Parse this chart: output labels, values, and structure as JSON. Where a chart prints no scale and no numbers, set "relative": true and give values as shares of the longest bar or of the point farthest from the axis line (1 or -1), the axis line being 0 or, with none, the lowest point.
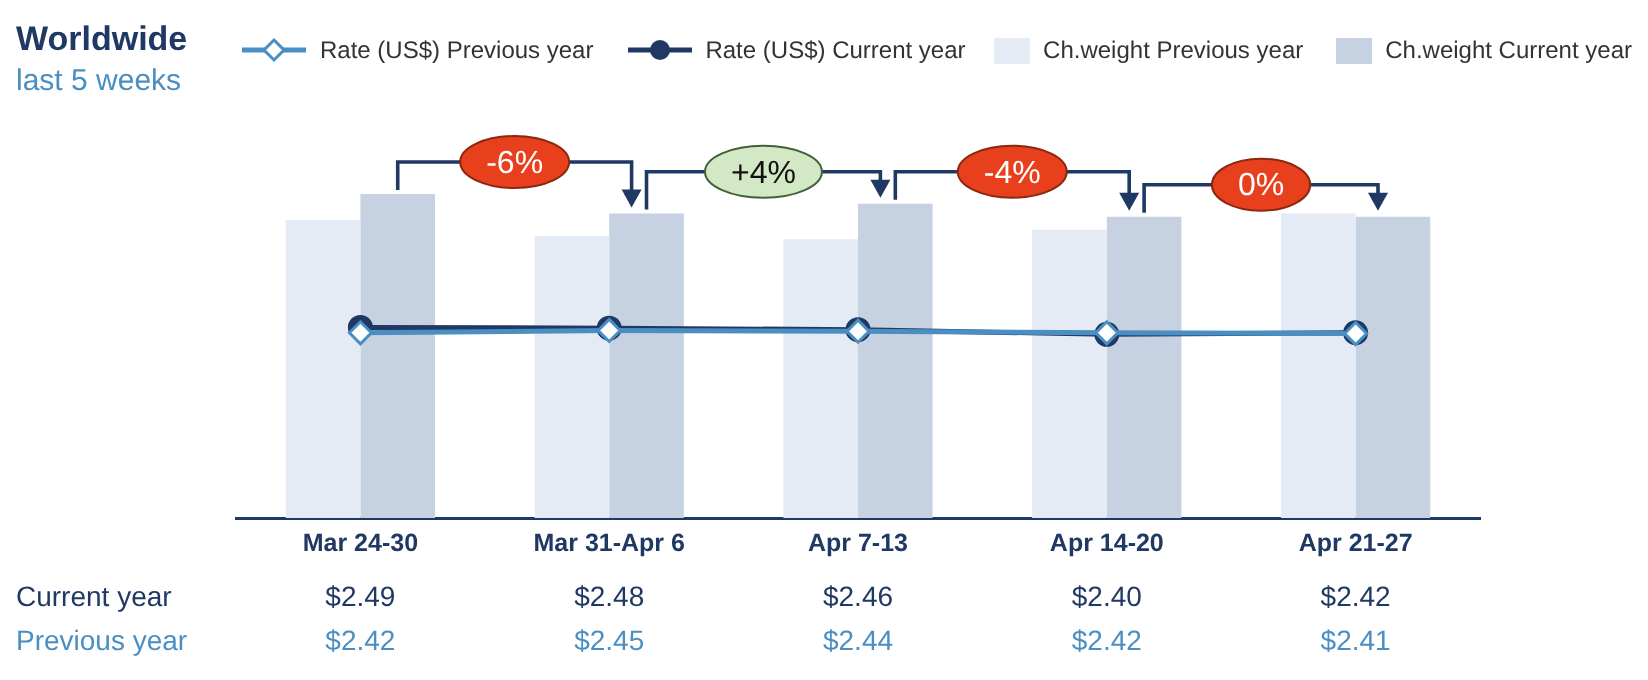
{
  "chart_data": [
    {
      "type": "bar",
      "title": "Worldwide",
      "subtitle": "last 5 weeks",
      "categories": [
        null,
        null,
        null,
        null,
        null
      ],
      "series": [
        {
          "name": "Ch.weight Previous year",
          "color": "#e4ebf4",
          "values": [
            0.92,
            0.87,
            0.86,
            0.89,
            0.94
          ]
        },
        {
          "name": "Ch.weight Current year",
          "color": "#c6d2e2",
          "values": [
            1,
            0.94,
            0.97,
            0.93,
            0.93
          ]
        }
      ],
      "relative": true,
      "tick_labels": false,
      "grid": false,
      "legend": "top right",
      "annotations": [
        "-6%",
        "+4%",
        "-4%",
        "0%"
      ]
    },
    {
      "type": "line",
      "categories": [
        "Mar 24-30",
        "Mar 31-Apr 6",
        "Apr 7-13",
        "Apr 14-20",
        "Apr 21-27"
      ],
      "series": [
        {
          "name": "Rate (US$) Previous year",
          "color": "#4a8ec2",
          "marker": "diamond",
          "values": [
            2.42,
            2.45,
            2.44,
            2.42,
            2.41
          ],
          "value_labels": [
            "$2.42",
            "$2.45",
            "$2.44",
            "$2.42",
            "$2.41"
          ]
        },
        {
          "name": "Rate (US$) Current year",
          "color": "#1f3864",
          "marker": "circle",
          "values": [
            2.49,
            2.48,
            2.46,
            2.4,
            2.42
          ],
          "value_labels": [
            "$2.49",
            "$2.48",
            "$2.46",
            "$2.40",
            "$2.42"
          ]
        }
      ],
      "tick_labels": "x",
      "grid": false,
      "legend": "top",
      "annotations": [
        "Previous year",
        "Current year"
      ]
    }
  ]
}
